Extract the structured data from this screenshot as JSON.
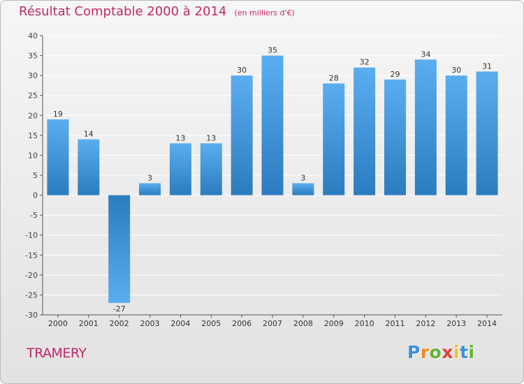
{
  "title": "Résultat Comptable 2000 à 2014",
  "unit_note": "(en milliers d'€)",
  "place_name": "TRAMERY",
  "logo": {
    "letters": [
      "P",
      "r",
      "o",
      "x",
      "i",
      "t",
      "i"
    ],
    "colors": [
      "#3c8fd8",
      "#f08a1c",
      "#62b52f",
      "#e63c33",
      "#f2c31b",
      "#3c8fd8",
      "#62b52f"
    ]
  },
  "colors": {
    "bar_dark": "#2b7cbf",
    "bar_light": "#5aaef0",
    "title": "#c0286b",
    "grid": "#ffffff",
    "axis": "#555555"
  },
  "chart_data": {
    "type": "bar",
    "title": "Résultat Comptable 2000 à 2014",
    "xlabel": "",
    "ylabel": "",
    "ylim": [
      -30,
      40
    ],
    "y_ticks": [
      -30,
      -25,
      -20,
      -15,
      -10,
      -5,
      0,
      5,
      10,
      15,
      20,
      25,
      30,
      35,
      40
    ],
    "grid": true,
    "categories": [
      "2000",
      "2001",
      "2002",
      "2003",
      "2004",
      "2005",
      "2006",
      "2007",
      "2008",
      "2009",
      "2010",
      "2011",
      "2012",
      "2013",
      "2014"
    ],
    "values": [
      19,
      14,
      -27,
      3,
      13,
      13,
      30,
      35,
      3,
      28,
      32,
      29,
      34,
      30,
      31
    ]
  }
}
